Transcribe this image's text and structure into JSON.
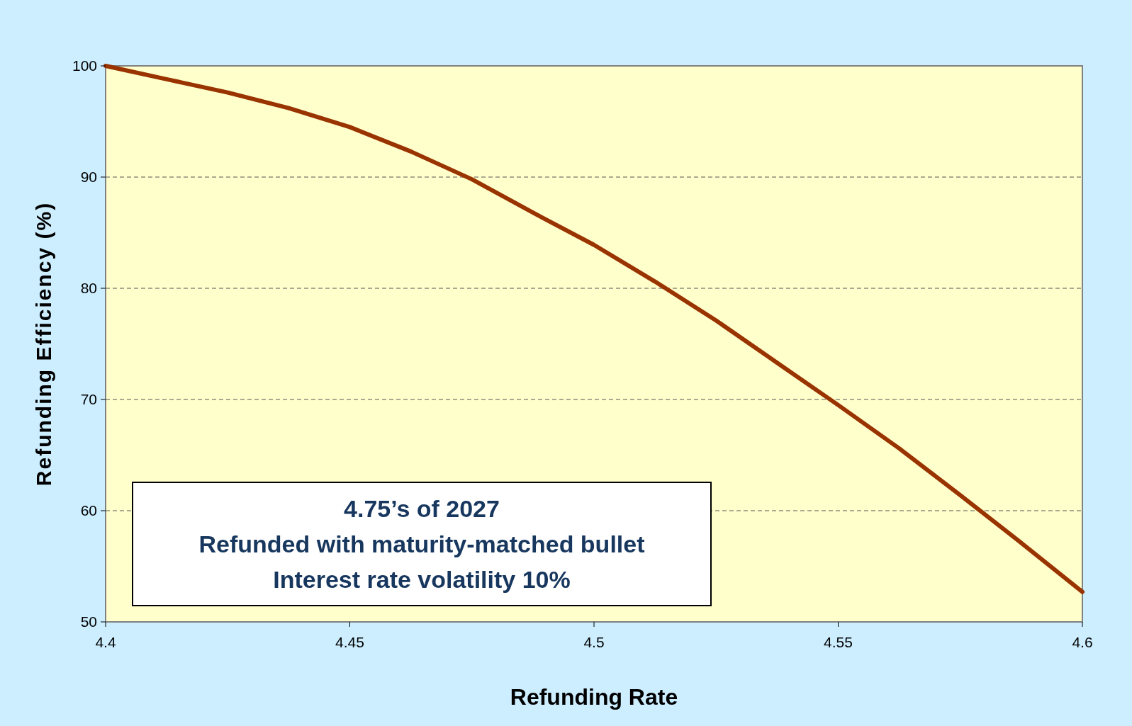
{
  "chart_data": {
    "type": "line",
    "xlabel": "Refunding Rate",
    "ylabel": "Refunding Efficiency (%)",
    "x": [
      4.4,
      4.4125,
      4.425,
      4.4375,
      4.45,
      4.4625,
      4.475,
      4.4875,
      4.5,
      4.5125,
      4.525,
      4.5375,
      4.55,
      4.5625,
      4.575,
      4.5875,
      4.6
    ],
    "series": [
      {
        "color": "#993300",
        "values": [
          100,
          98.8,
          97.6,
          96.2,
          94.5,
          92.3,
          89.8,
          86.8,
          83.9,
          80.6,
          77.1,
          73.3,
          69.5,
          65.6,
          61.4,
          57.1,
          52.7
        ]
      }
    ],
    "xlim": [
      4.4,
      4.6
    ],
    "xticks": [
      4.4,
      4.45,
      4.5,
      4.55,
      4.6
    ],
    "ylim": [
      50,
      100
    ],
    "yticks": [
      50,
      60,
      70,
      80,
      90,
      100
    ],
    "grid": "y",
    "marker": "none",
    "line_style": "solid",
    "annotations": [
      "4.75’s of 2027",
      "Refunded with maturity-matched bullet",
      "Interest rate volatility 10%"
    ]
  }
}
